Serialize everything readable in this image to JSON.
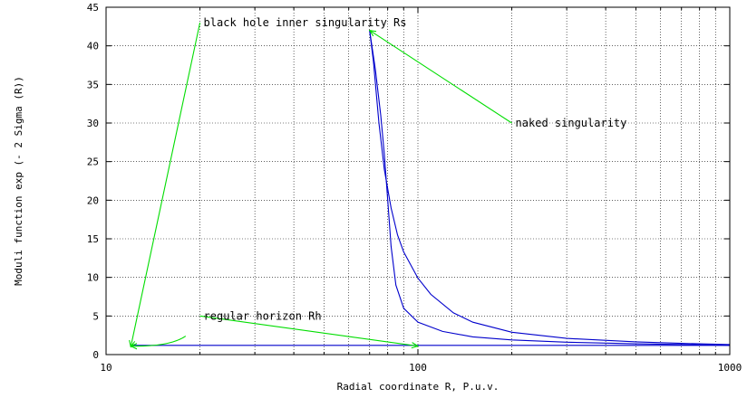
{
  "chart_data": {
    "type": "line",
    "xlabel": "Radial coordinate R, P.u.v.",
    "ylabel": "Moduli function exp (- 2 Sigma (R))",
    "xscale": "log",
    "xlim": [
      10,
      1000
    ],
    "ylim": [
      0,
      45
    ],
    "grid": true,
    "x_tick_labels": [
      "10",
      "100",
      "1000"
    ],
    "y_ticks": [
      0,
      5,
      10,
      15,
      20,
      25,
      30,
      35,
      40,
      45
    ],
    "series": [
      {
        "color": "#0000cc",
        "points": [
          [
            70,
            42
          ],
          [
            72,
            38
          ],
          [
            75,
            30
          ],
          [
            78,
            24
          ],
          [
            82,
            19
          ],
          [
            86,
            15.5
          ],
          [
            90,
            13.3
          ],
          [
            100,
            9.9
          ],
          [
            110,
            7.8
          ],
          [
            130,
            5.4
          ],
          [
            150,
            4.2
          ],
          [
            200,
            2.9
          ],
          [
            300,
            2.1
          ],
          [
            500,
            1.65
          ],
          [
            700,
            1.45
          ],
          [
            1000,
            1.3
          ]
        ]
      },
      {
        "color": "#0000cc",
        "points": [
          [
            70,
            42
          ],
          [
            73,
            37
          ],
          [
            76,
            31
          ],
          [
            78,
            26
          ],
          [
            80,
            20
          ],
          [
            82,
            14
          ],
          [
            85,
            9
          ],
          [
            90,
            6
          ],
          [
            100,
            4.2
          ],
          [
            120,
            3.0
          ],
          [
            150,
            2.3
          ],
          [
            200,
            1.9
          ],
          [
            300,
            1.6
          ],
          [
            500,
            1.4
          ],
          [
            1000,
            1.2
          ]
        ]
      },
      {
        "color": "#0000cc",
        "points": [
          [
            12,
            1.2
          ],
          [
            1000,
            1.2
          ]
        ]
      }
    ],
    "annotation_color": "#00dd00",
    "annotations": [
      {
        "text": "black hole inner singularity Rs",
        "x": 20,
        "y": 43,
        "arrow_to": [
          12,
          1.0
        ]
      },
      {
        "text": "naked singularity",
        "x": 200,
        "y": 30,
        "arrow_to": [
          70,
          42
        ]
      },
      {
        "text": "regular horizon Rh",
        "x": 20,
        "y": 5,
        "arrow_to": [
          100,
          1.1
        ]
      }
    ],
    "horizon_curve": [
      [
        18,
        2.4
      ],
      [
        16,
        1.8
      ],
      [
        14,
        1.4
      ],
      [
        12,
        1.1
      ]
    ]
  }
}
